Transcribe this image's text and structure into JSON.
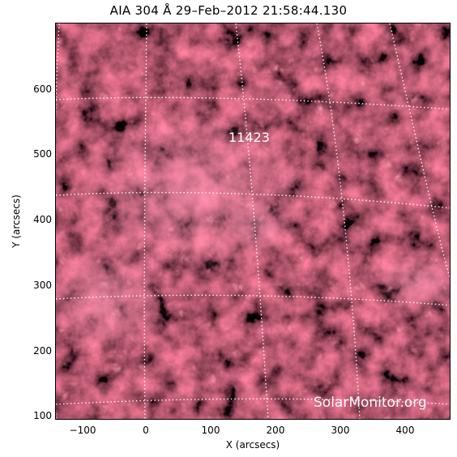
{
  "title": "AIA 304 Å 29–Feb–2012 21:58:44.130",
  "axes": {
    "x_label": "X (arcsecs)",
    "y_label": "Y (arcsecs)",
    "x_ticks": [
      "−100",
      "0",
      "100",
      "200",
      "300",
      "400"
    ],
    "y_ticks": [
      "600",
      "500",
      "400",
      "300",
      "200",
      "100"
    ]
  },
  "region_label": "11423",
  "watermark": "SolarMonitor.org",
  "colors": {
    "background": "#2a0410",
    "plasma": "#b8204a",
    "bright": "#ffc8d8",
    "grid": "#ffffff"
  }
}
